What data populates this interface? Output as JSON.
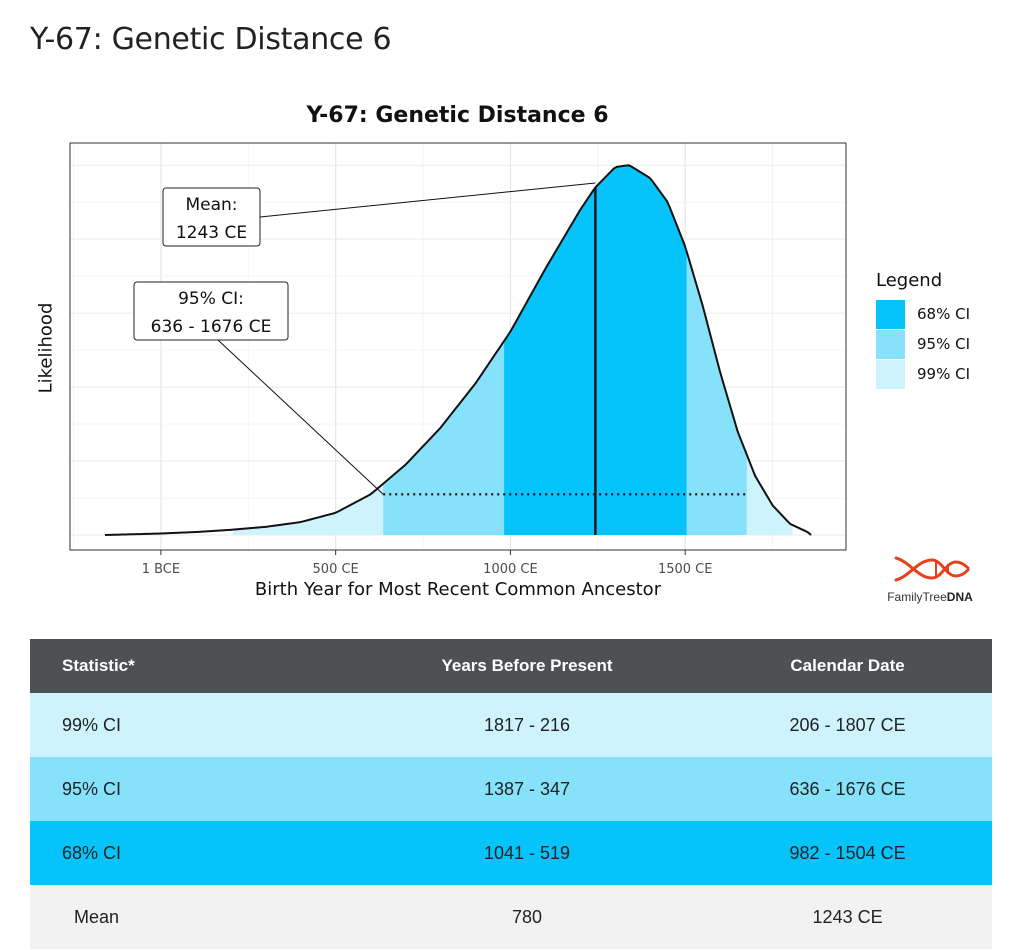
{
  "page": {
    "title": "Y-67: Genetic Distance 6"
  },
  "chart_data": {
    "type": "area",
    "title": "Y-67: Genetic Distance 6",
    "xlabel": "Birth Year for Most Recent Common Ancestor",
    "ylabel": "Likelihood",
    "x_ticks": [
      {
        "value": 0,
        "label": "1 BCE"
      },
      {
        "value": 500,
        "label": "500 CE"
      },
      {
        "value": 1000,
        "label": "1000 CE"
      },
      {
        "value": 1500,
        "label": "1500 CE"
      }
    ],
    "xlim": [
      -260,
      1960
    ],
    "ylim": [
      0,
      1.06
    ],
    "grid": true,
    "curve": {
      "x": [
        -160,
        0,
        100,
        200,
        300,
        400,
        500,
        600,
        700,
        800,
        900,
        1000,
        1100,
        1200,
        1243,
        1300,
        1340,
        1400,
        1450,
        1500,
        1550,
        1600,
        1650,
        1700,
        1750,
        1800,
        1850,
        1860
      ],
      "y": [
        0.0,
        0.004,
        0.008,
        0.014,
        0.022,
        0.035,
        0.06,
        0.11,
        0.19,
        0.29,
        0.41,
        0.55,
        0.72,
        0.88,
        0.94,
        0.995,
        1.0,
        0.965,
        0.9,
        0.78,
        0.62,
        0.44,
        0.28,
        0.16,
        0.08,
        0.03,
        0.008,
        0.0
      ]
    },
    "bands": [
      {
        "name": "99% CI",
        "from": 206,
        "to": 1807,
        "color": "#cef3fd"
      },
      {
        "name": "95% CI",
        "from": 636,
        "to": 1676,
        "color": "#86e2fb"
      },
      {
        "name": "68% CI",
        "from": 982,
        "to": 1504,
        "color": "#06c3fa"
      }
    ],
    "mean": 1243,
    "ci_line": {
      "from": 636,
      "to": 1676
    },
    "annotations": [
      {
        "label": "Mean:",
        "value": "1243 CE"
      },
      {
        "label": "95% CI:",
        "value": "636 - 1676 CE"
      }
    ],
    "legend": {
      "title": "Legend",
      "position": "right",
      "items": [
        {
          "label": "68% CI",
          "color": "#06c3fa"
        },
        {
          "label": "95% CI",
          "color": "#86e2fb"
        },
        {
          "label": "99% CI",
          "color": "#cef3fd"
        }
      ]
    }
  },
  "logo": {
    "name": "FamilyTree",
    "suffix": "DNA",
    "icon": "dna-helix-icon",
    "color": "#e8401c"
  },
  "table": {
    "headers": [
      "Statistic*",
      "Years Before Present",
      "Calendar Date"
    ],
    "rows": [
      {
        "statistic": "99% CI",
        "ybp": "1817 - 216",
        "date": "206 - 1807 CE",
        "color": "#cef3fd"
      },
      {
        "statistic": "95% CI",
        "ybp": "1387 - 347",
        "date": "636 - 1676 CE",
        "color": "#86e2fb"
      },
      {
        "statistic": "68% CI",
        "ybp": "1041 - 519",
        "date": "982 - 1504 CE",
        "color": "#06c3fa"
      },
      {
        "statistic": "Mean",
        "ybp": "780",
        "date": "1243 CE",
        "color": "#f2f2f2"
      }
    ]
  }
}
